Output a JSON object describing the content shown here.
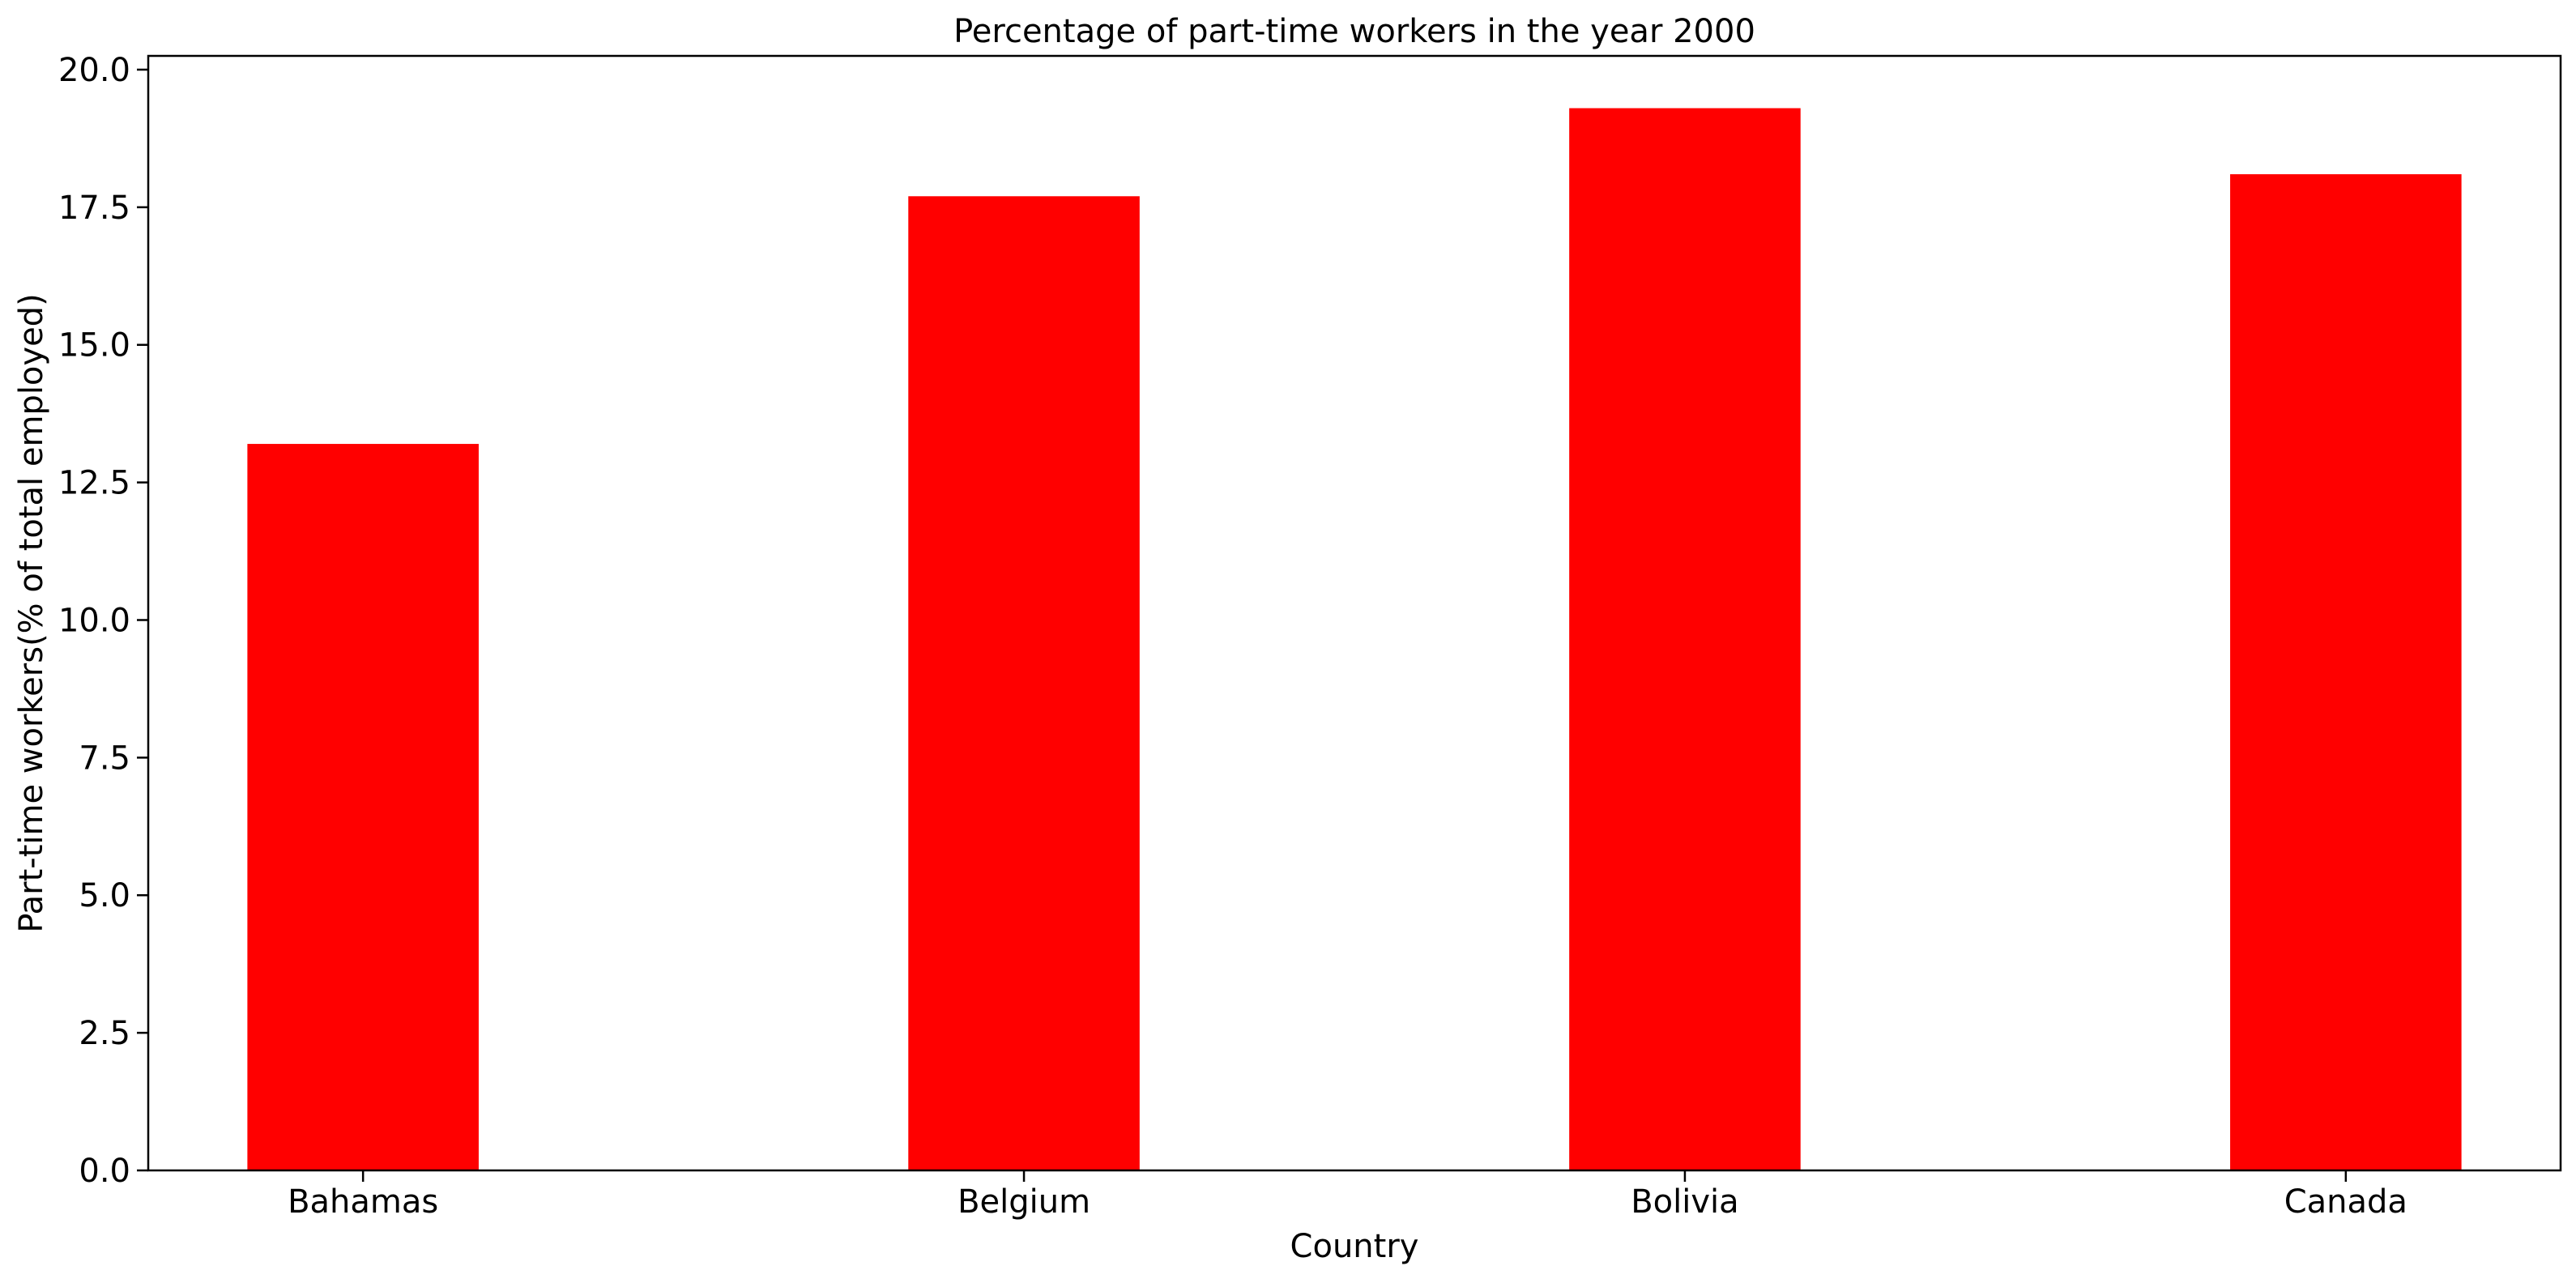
{
  "chart_data": {
    "type": "bar",
    "title": "Percentage of part-time workers in the year 2000",
    "xlabel": "Country",
    "ylabel": "Part-time workers(% of total employed)",
    "categories": [
      "Bahamas",
      "Belgium",
      "Bolivia",
      "Canada"
    ],
    "values": [
      13.2,
      17.7,
      19.3,
      18.1
    ],
    "ylim": [
      0,
      20.25
    ],
    "yticks": [
      "0.0",
      "2.5",
      "5.0",
      "7.5",
      "10.0",
      "12.5",
      "15.0",
      "17.5",
      "20.0"
    ],
    "bar_color": "#ff0000",
    "grid": false,
    "legend": "none"
  }
}
